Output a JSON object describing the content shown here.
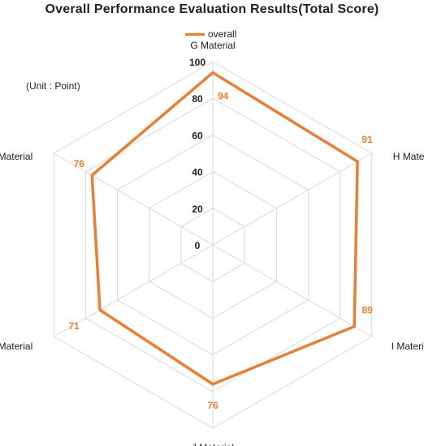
{
  "chart_data": {
    "type": "radar",
    "title": "Overall Performance Evaluation Results(Total Score)",
    "unit_note": "(Unit : Point)",
    "legend_position": "top",
    "categories": [
      "G Material",
      "H Material",
      "I Material",
      "J Material",
      "K Material",
      "L Material"
    ],
    "series": [
      {
        "name": "overall",
        "color": "#ED7D31",
        "values": [
          94,
          91,
          89,
          76,
          71,
          76
        ]
      }
    ],
    "rlim": [
      0,
      100
    ],
    "tick_labels": [
      "0",
      "20",
      "40",
      "60",
      "80",
      "100"
    ],
    "grid": true,
    "grid_color": "#D9D9D9"
  }
}
